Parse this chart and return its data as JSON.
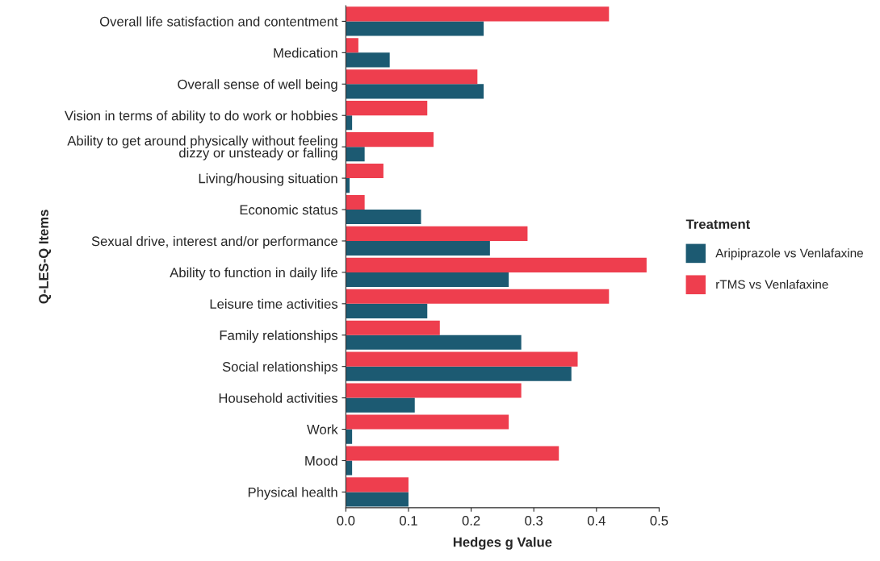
{
  "chart_data": {
    "type": "bar",
    "orientation": "horizontal",
    "xlabel": "Hedges g Value",
    "ylabel": "Q-LES-Q Items",
    "legend_title": "Treatment",
    "legend": "right",
    "grid": false,
    "categories": [
      "Overall life satisfaction and contentment",
      "Medication",
      "Overall sense of well being",
      "Vision in terms of ability to do work or hobbies",
      "Ability to get around physically without feeling\ndizzy or unsteady or falling",
      "Living/housing situation",
      "Economic status",
      "Sexual drive, interest and/or performance",
      "Ability to function in daily life",
      "Leisure time activities",
      "Family relationships",
      "Social relationships",
      "Household activities",
      "Work",
      "Mood",
      "Physical health"
    ],
    "series": [
      {
        "name": "Aripiprazole vs Venlafaxine",
        "color": "#1c5a72",
        "values": [
          0.22,
          0.07,
          0.22,
          0.01,
          0.03,
          0.006,
          0.12,
          0.23,
          0.26,
          0.13,
          0.28,
          0.36,
          0.11,
          0.01,
          0.01,
          0.1
        ]
      },
      {
        "name": "rTMS vs Venlafaxine",
        "color": "#ee3e4e",
        "values": [
          0.42,
          0.02,
          0.21,
          0.13,
          0.14,
          0.06,
          0.03,
          0.29,
          0.48,
          0.42,
          0.15,
          0.37,
          0.28,
          0.26,
          0.34,
          0.1
        ]
      }
    ],
    "xlim": [
      0,
      0.5
    ],
    "xticks": [
      {
        "value": 0,
        "label": "0.0"
      },
      0.1,
      0.2,
      0.3,
      0.4,
      0.5
    ]
  }
}
